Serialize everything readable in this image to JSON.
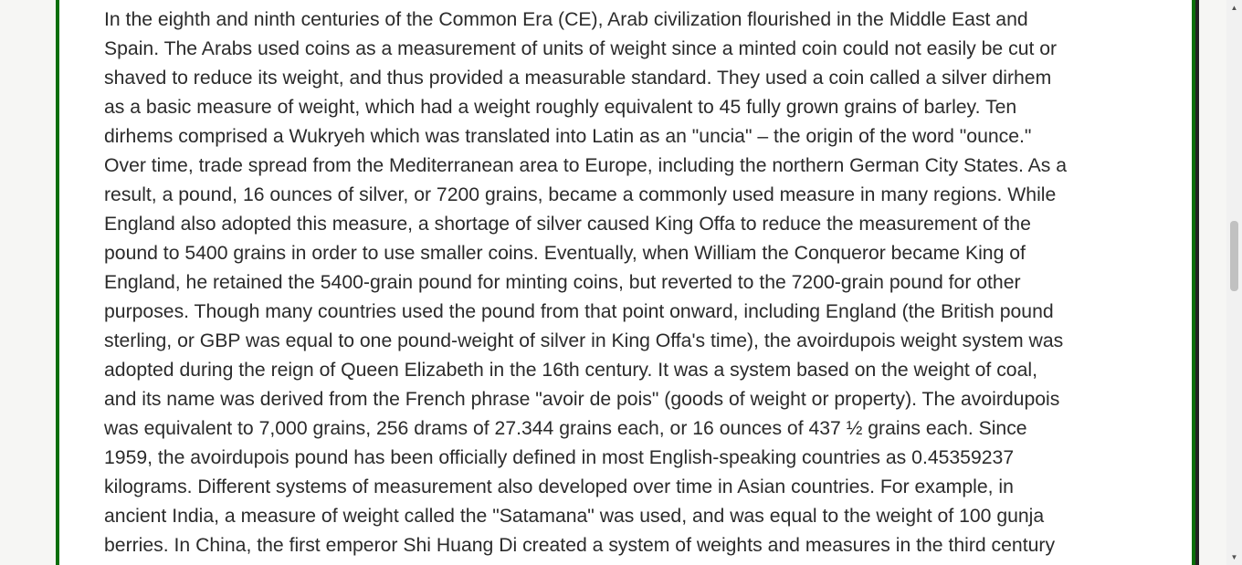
{
  "article": {
    "lines": [
      "In the eighth and ninth centuries of the Common Era (CE), Arab civilization flourished in the Middle East and",
      "Spain. The Arabs used coins as a measurement of units of weight since a minted coin could not easily be cut or",
      "shaved to reduce its weight, and thus provided a measurable standard. They used a coin called a silver dirhem",
      "as a basic measure of weight, which had a weight roughly equivalent to 45 fully grown grains of barley. Ten",
      "dirhems comprised a Wukryeh which was translated into Latin as an \"uncia\" – the origin of the word \"ounce.\"",
      "Over time, trade spread from the Mediterranean area to Europe, including the northern German City States. As a",
      "result, a pound, 16 ounces of silver, or 7200 grains, became a commonly used measure in many regions. While",
      "England also adopted this measure, a shortage of silver caused King Offa to reduce the measurement of the",
      "pound to 5400 grains in order to use smaller coins. Eventually, when William the Conqueror became King of",
      "England, he retained the 5400-grain pound for minting coins, but reverted to the 7200-grain pound for other",
      "purposes. Though many countries used the pound from that point onward, including England (the British pound",
      "sterling, or GBP was equal to one pound-weight of silver in King Offa's time), the avoirdupois weight system was",
      "adopted during the reign of Queen Elizabeth in the 16th century. It was a system based on the weight of coal,",
      "and its name was derived from the French phrase \"avoir de pois\" (goods of weight or property). The avoirdupois",
      "was equivalent to 7,000 grains, 256 drams of 27.344 grains each, or 16 ounces of 437 ½ grains each. Since",
      "1959, the avoirdupois pound has been officially defined in most English-speaking countries as 0.45359237",
      "kilograms. Different systems of measurement also developed over time in Asian countries. For example, in",
      "ancient India, a measure of weight called the \"Satamana\" was used, and was equal to the weight of 100 gunja",
      "berries. In China, the first emperor Shi Huang Di created a system of weights and measures in the third century"
    ]
  },
  "scrollbar": {
    "up_icon": "triangle-up-icon",
    "down_icon": "triangle-down-icon",
    "position": 0.39
  }
}
